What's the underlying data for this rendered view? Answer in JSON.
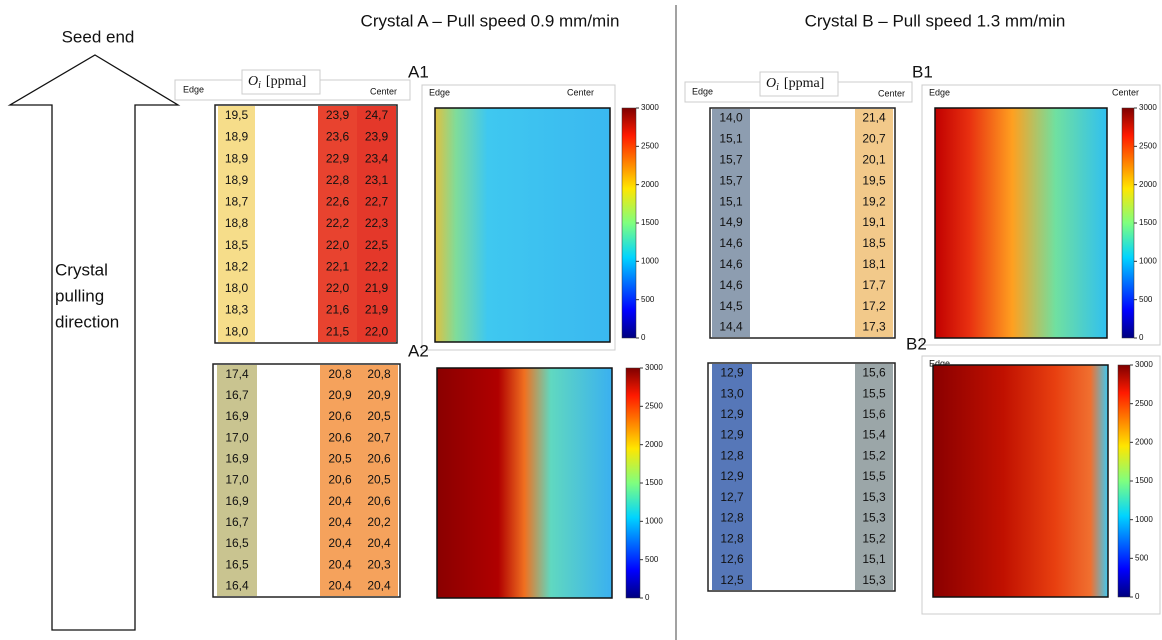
{
  "seed_end": "Seed end",
  "direction": [
    "Crystal",
    "pulling",
    "direction"
  ],
  "titles": [
    "Crystal A – Pull speed 0.9 mm/min",
    "Crystal B – Pull speed 1.3 mm/min"
  ],
  "header": {
    "edge": "Edge",
    "center": "Center",
    "oi": "O",
    "oi_sub": "i",
    "oi_unit": "[ppma]"
  },
  "colorbar": {
    "lim": [
      0,
      3000
    ],
    "ticks": [
      0,
      500,
      1000,
      1500,
      2000,
      2500,
      3000
    ]
  },
  "panels": [
    {
      "label": "A1",
      "columns": [
        [
          "19,5",
          "18,9",
          "18,9",
          "18,9",
          "18,7",
          "18,8",
          "18,5",
          "18,2",
          "18,0",
          "18,3",
          "18,0"
        ],
        [
          "23,9",
          "23,6",
          "22,9",
          "22,8",
          "22,6",
          "22,2",
          "22,0",
          "22,1",
          "22,0",
          "21,6",
          "21,5"
        ],
        [
          "24,7",
          "23,9",
          "23,4",
          "23,1",
          "22,7",
          "22,3",
          "22,5",
          "22,2",
          "21,9",
          "21,9",
          "22,0"
        ]
      ]
    },
    {
      "label": "A2",
      "columns": [
        [
          "17,4",
          "16,7",
          "16,9",
          "17,0",
          "16,9",
          "17,0",
          "16,9",
          "16,7",
          "16,5",
          "16,5",
          "16,4"
        ],
        [
          "20,8",
          "20,9",
          "20,6",
          "20,6",
          "20,5",
          "20,6",
          "20,4",
          "20,4",
          "20,4",
          "20,4",
          "20,4"
        ],
        [
          "20,8",
          "20,9",
          "20,5",
          "20,7",
          "20,6",
          "20,5",
          "20,6",
          "20,2",
          "20,4",
          "20,3",
          "20,4"
        ]
      ]
    },
    {
      "label": "B1",
      "columns": [
        [
          "14,0",
          "15,1",
          "15,7",
          "15,7",
          "15,1",
          "14,9",
          "14,6",
          "14,6",
          "14,6",
          "14,5",
          "14,4"
        ],
        [
          "21,4",
          "20,7",
          "20,1",
          "19,5",
          "19,2",
          "19,1",
          "18,5",
          "18,1",
          "17,7",
          "17,2",
          "17,3"
        ]
      ]
    },
    {
      "label": "B2",
      "columns": [
        [
          "12,9",
          "13,0",
          "12,9",
          "12,9",
          "12,8",
          "12,9",
          "12,7",
          "12,8",
          "12,8",
          "12,6",
          "12,5"
        ],
        [
          "15,6",
          "15,5",
          "15,6",
          "15,4",
          "15,2",
          "15,5",
          "15,3",
          "15,3",
          "15,2",
          "15,1",
          "15,3"
        ]
      ]
    }
  ]
}
